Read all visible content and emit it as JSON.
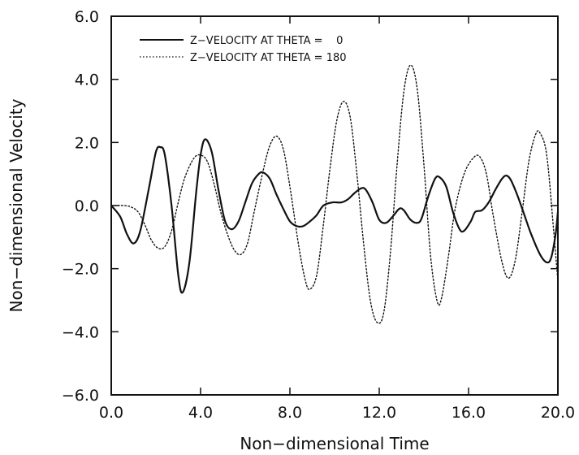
{
  "chart_data": {
    "type": "line",
    "title": "",
    "xlabel": "Non−dimensional Time",
    "ylabel": "Non−dimensional Velocity",
    "xlim": [
      0,
      20
    ],
    "ylim": [
      -6,
      6
    ],
    "grid": false,
    "legend_position": "top-left",
    "x_ticks": [
      0,
      4,
      8,
      12,
      16,
      20
    ],
    "x_tick_labels": [
      "0.0",
      "4.0",
      "8.0",
      "12.0",
      "16.0",
      "20.0"
    ],
    "y_ticks": [
      -6,
      -4,
      -2,
      0,
      2,
      4,
      6
    ],
    "y_tick_labels": [
      "−6.0",
      "−4.0",
      "−2.0",
      "0.0",
      "2.0",
      "4.0",
      "6.0"
    ],
    "series": [
      {
        "name": "Z−VELOCITY AT THETA =    0",
        "style": "solid",
        "color": "#111111",
        "points": [
          [
            0,
            0
          ],
          [
            0.4,
            -0.35
          ],
          [
            0.7,
            -0.9
          ],
          [
            1.0,
            -1.2
          ],
          [
            1.3,
            -0.8
          ],
          [
            1.7,
            0.6
          ],
          [
            2.0,
            1.7
          ],
          [
            2.2,
            1.85
          ],
          [
            2.4,
            1.6
          ],
          [
            2.7,
            0.0
          ],
          [
            3.0,
            -2.2
          ],
          [
            3.2,
            -2.75
          ],
          [
            3.5,
            -1.8
          ],
          [
            3.8,
            0.4
          ],
          [
            4.0,
            1.6
          ],
          [
            4.2,
            2.1
          ],
          [
            4.5,
            1.7
          ],
          [
            4.8,
            0.5
          ],
          [
            5.1,
            -0.5
          ],
          [
            5.4,
            -0.75
          ],
          [
            5.7,
            -0.5
          ],
          [
            6.0,
            0.1
          ],
          [
            6.3,
            0.7
          ],
          [
            6.6,
            1.0
          ],
          [
            6.8,
            1.05
          ],
          [
            7.1,
            0.85
          ],
          [
            7.4,
            0.35
          ],
          [
            7.7,
            -0.1
          ],
          [
            8.0,
            -0.5
          ],
          [
            8.3,
            -0.65
          ],
          [
            8.6,
            -0.65
          ],
          [
            8.9,
            -0.5
          ],
          [
            9.2,
            -0.3
          ],
          [
            9.5,
            0.0
          ],
          [
            9.9,
            0.1
          ],
          [
            10.3,
            0.1
          ],
          [
            10.6,
            0.2
          ],
          [
            10.9,
            0.4
          ],
          [
            11.2,
            0.55
          ],
          [
            11.4,
            0.5
          ],
          [
            11.7,
            0.1
          ],
          [
            12.0,
            -0.45
          ],
          [
            12.3,
            -0.55
          ],
          [
            12.6,
            -0.35
          ],
          [
            12.9,
            -0.1
          ],
          [
            13.1,
            -0.15
          ],
          [
            13.4,
            -0.45
          ],
          [
            13.7,
            -0.55
          ],
          [
            13.9,
            -0.4
          ],
          [
            14.2,
            0.3
          ],
          [
            14.5,
            0.85
          ],
          [
            14.7,
            0.9
          ],
          [
            15.0,
            0.6
          ],
          [
            15.3,
            -0.2
          ],
          [
            15.6,
            -0.75
          ],
          [
            15.8,
            -0.8
          ],
          [
            16.1,
            -0.5
          ],
          [
            16.3,
            -0.2
          ],
          [
            16.6,
            -0.15
          ],
          [
            16.9,
            0.1
          ],
          [
            17.2,
            0.5
          ],
          [
            17.5,
            0.85
          ],
          [
            17.7,
            0.95
          ],
          [
            17.9,
            0.8
          ],
          [
            18.2,
            0.3
          ],
          [
            18.5,
            -0.3
          ],
          [
            18.8,
            -0.9
          ],
          [
            19.2,
            -1.55
          ],
          [
            19.5,
            -1.8
          ],
          [
            19.7,
            -1.65
          ],
          [
            19.9,
            -0.9
          ],
          [
            20.0,
            -0.2
          ]
        ]
      },
      {
        "name": "Z−VELOCITY AT THETA = 180",
        "style": "dotted",
        "color": "#111111",
        "points": [
          [
            0,
            0
          ],
          [
            0.6,
            0.0
          ],
          [
            0.9,
            -0.05
          ],
          [
            1.2,
            -0.2
          ],
          [
            1.5,
            -0.6
          ],
          [
            1.8,
            -1.1
          ],
          [
            2.1,
            -1.35
          ],
          [
            2.4,
            -1.3
          ],
          [
            2.7,
            -0.8
          ],
          [
            3.0,
            0.1
          ],
          [
            3.3,
            0.9
          ],
          [
            3.7,
            1.5
          ],
          [
            4.0,
            1.6
          ],
          [
            4.3,
            1.4
          ],
          [
            4.6,
            0.7
          ],
          [
            4.9,
            -0.2
          ],
          [
            5.2,
            -0.9
          ],
          [
            5.5,
            -1.4
          ],
          [
            5.8,
            -1.55
          ],
          [
            6.1,
            -1.2
          ],
          [
            6.4,
            -0.2
          ],
          [
            6.8,
            1.1
          ],
          [
            7.1,
            1.9
          ],
          [
            7.4,
            2.2
          ],
          [
            7.7,
            1.8
          ],
          [
            8.0,
            0.6
          ],
          [
            8.4,
            -1.3
          ],
          [
            8.7,
            -2.4
          ],
          [
            8.9,
            -2.65
          ],
          [
            9.2,
            -2.2
          ],
          [
            9.5,
            -0.6
          ],
          [
            9.8,
            1.2
          ],
          [
            10.1,
            2.7
          ],
          [
            10.4,
            3.3
          ],
          [
            10.7,
            2.8
          ],
          [
            11.0,
            1.0
          ],
          [
            11.3,
            -1.2
          ],
          [
            11.6,
            -3.0
          ],
          [
            11.9,
            -3.7
          ],
          [
            12.2,
            -3.4
          ],
          [
            12.5,
            -1.5
          ],
          [
            12.8,
            1.3
          ],
          [
            13.1,
            3.6
          ],
          [
            13.4,
            4.45
          ],
          [
            13.7,
            3.7
          ],
          [
            14.0,
            1.3
          ],
          [
            14.3,
            -1.6
          ],
          [
            14.6,
            -3.05
          ],
          [
            14.8,
            -2.9
          ],
          [
            15.1,
            -1.6
          ],
          [
            15.4,
            -0.1
          ],
          [
            15.8,
            1.0
          ],
          [
            16.2,
            1.5
          ],
          [
            16.5,
            1.55
          ],
          [
            16.8,
            1.0
          ],
          [
            17.1,
            -0.3
          ],
          [
            17.5,
            -1.8
          ],
          [
            17.8,
            -2.3
          ],
          [
            18.1,
            -1.7
          ],
          [
            18.4,
            -0.2
          ],
          [
            18.7,
            1.4
          ],
          [
            19.0,
            2.25
          ],
          [
            19.2,
            2.3
          ],
          [
            19.5,
            1.6
          ],
          [
            19.8,
            -0.7
          ],
          [
            20.0,
            -2.4
          ]
        ]
      }
    ]
  }
}
